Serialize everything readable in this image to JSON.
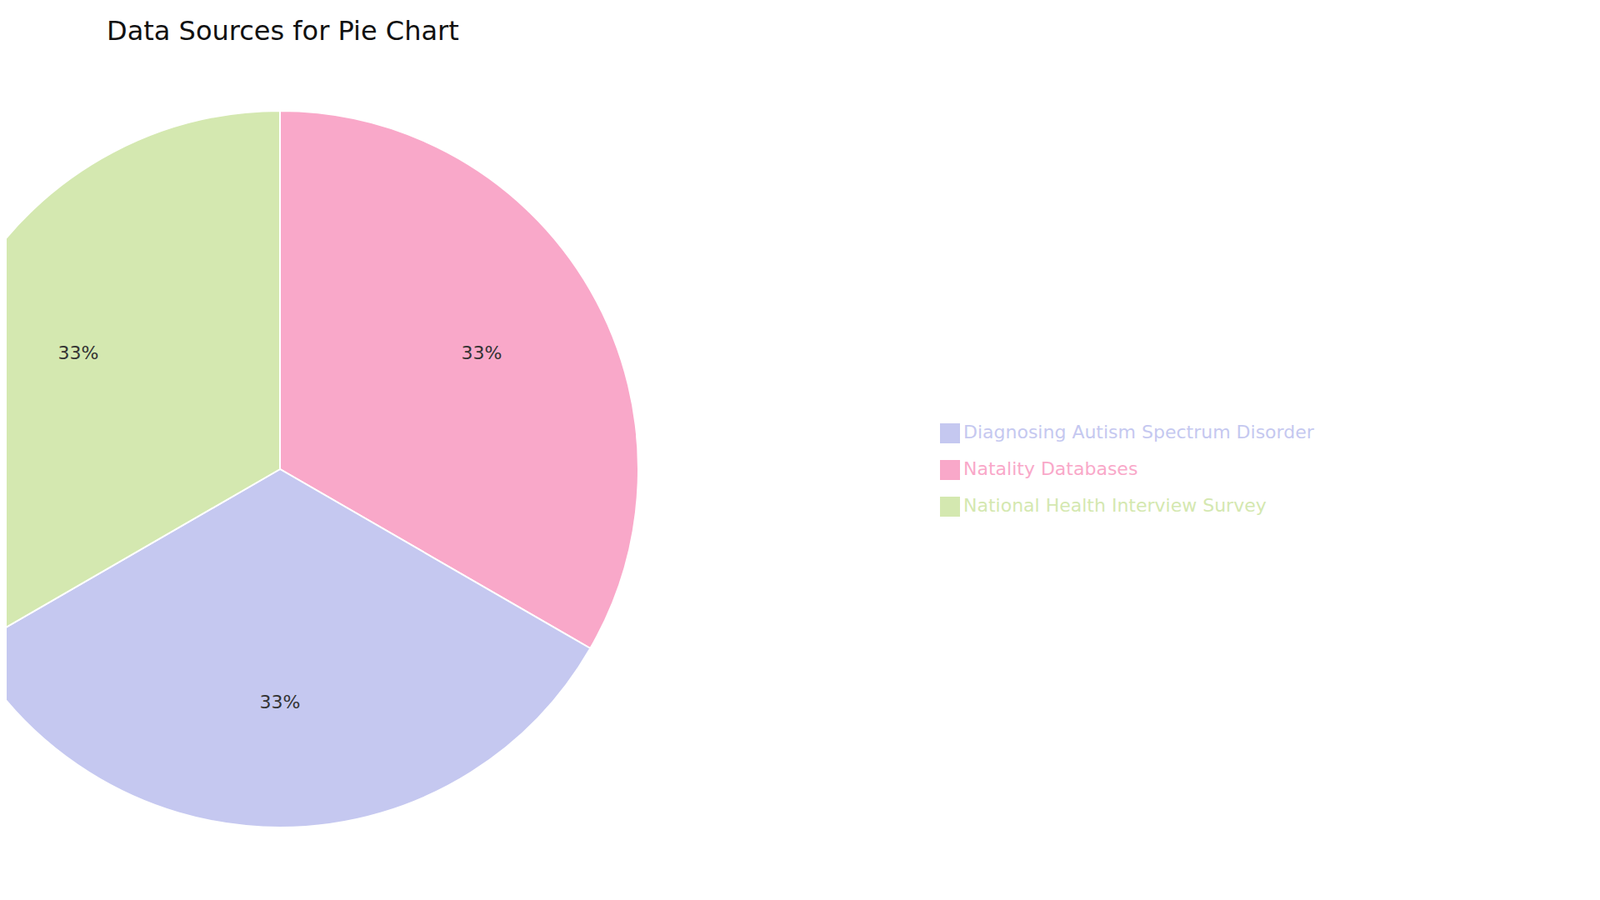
{
  "chart_data": {
    "type": "pie",
    "title": "Data Sources for Pie Chart",
    "categories": [
      "Natality Databases",
      "Diagnosing Autism Spectrum Disorder",
      "National Health Interview Survey"
    ],
    "values": [
      33,
      33,
      33
    ],
    "value_labels": [
      "33%",
      "33%",
      "33%"
    ],
    "colors": [
      "#f9a8c9",
      "#c5c8f0",
      "#d4e8b0"
    ],
    "data_labels": true,
    "legend": "right"
  }
}
